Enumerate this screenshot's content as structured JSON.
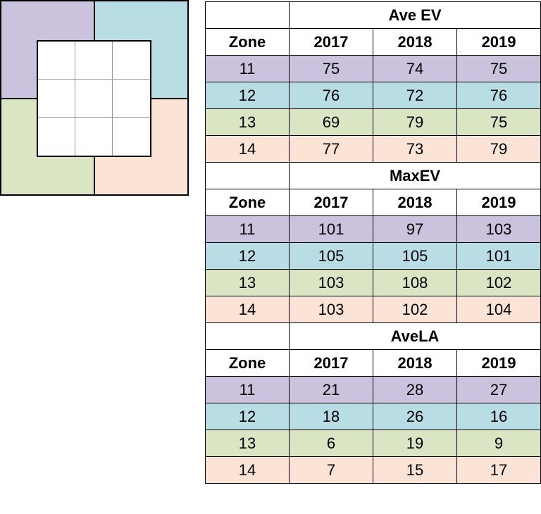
{
  "colors": {
    "zone_11": "#cbc2dd",
    "zone_12": "#b9dde5",
    "zone_13": "#d9e5c3",
    "zone_14": "#fbe3d5"
  },
  "tables": [
    {
      "metric": "Ave EV",
      "zone_header": "Zone",
      "years": [
        "2017",
        "2018",
        "2019"
      ],
      "rows": [
        {
          "zone": "11",
          "values": [
            "75",
            "74",
            "75"
          ]
        },
        {
          "zone": "12",
          "values": [
            "76",
            "72",
            "76"
          ]
        },
        {
          "zone": "13",
          "values": [
            "69",
            "79",
            "75"
          ]
        },
        {
          "zone": "14",
          "values": [
            "77",
            "73",
            "79"
          ]
        }
      ]
    },
    {
      "metric": "MaxEV",
      "zone_header": "Zone",
      "years": [
        "2017",
        "2018",
        "2019"
      ],
      "rows": [
        {
          "zone": "11",
          "values": [
            "101",
            "97",
            "103"
          ]
        },
        {
          "zone": "12",
          "values": [
            "105",
            "105",
            "101"
          ]
        },
        {
          "zone": "13",
          "values": [
            "103",
            "108",
            "102"
          ]
        },
        {
          "zone": "14",
          "values": [
            "103",
            "102",
            "104"
          ]
        }
      ]
    },
    {
      "metric": "AveLA",
      "zone_header": "Zone",
      "years": [
        "2017",
        "2018",
        "2019"
      ],
      "rows": [
        {
          "zone": "11",
          "values": [
            "21",
            "28",
            "27"
          ]
        },
        {
          "zone": "12",
          "values": [
            "18",
            "26",
            "16"
          ]
        },
        {
          "zone": "13",
          "values": [
            "6",
            "19",
            "9"
          ]
        },
        {
          "zone": "14",
          "values": [
            "7",
            "15",
            "17"
          ]
        }
      ]
    }
  ]
}
